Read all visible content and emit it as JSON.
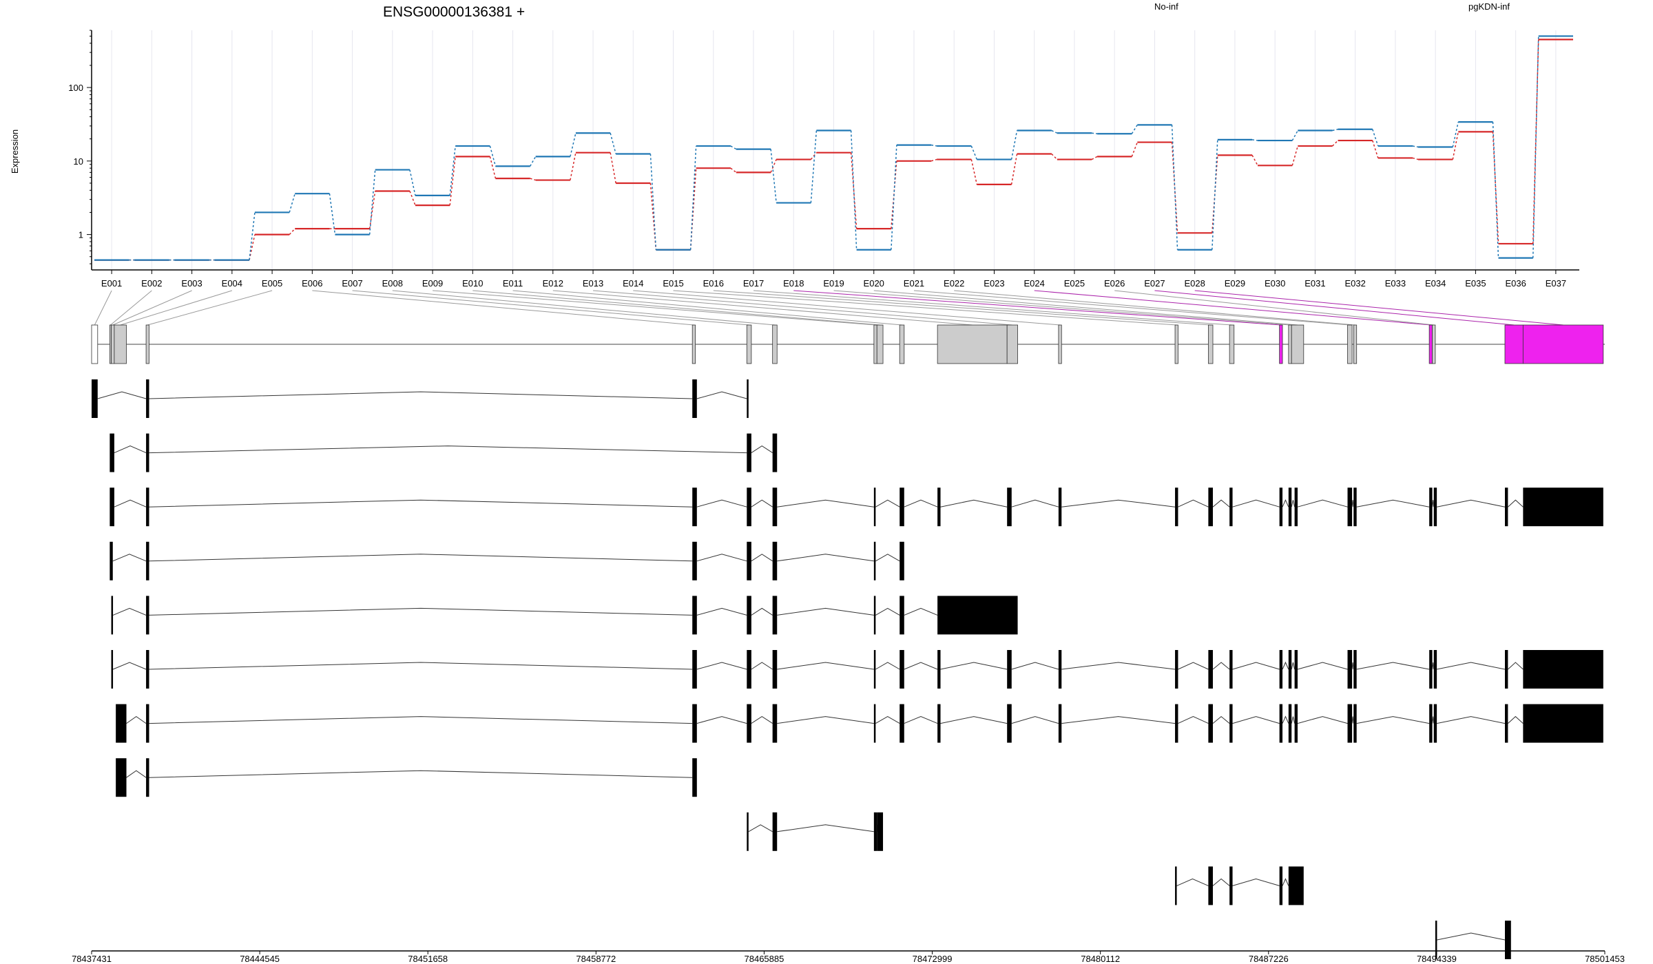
{
  "header": {
    "gene_title": "ENSG00000136381 +",
    "legend": [
      {
        "name": "No-inf",
        "color": "#d62728"
      },
      {
        "name": "pgKDN-inf",
        "color": "#1f77b4"
      }
    ]
  },
  "colors": {
    "red": "#d62728",
    "blue": "#1f77b4",
    "magenta": "#ee22ee",
    "gray_exon": "#cccccc",
    "black_exon": "#000000",
    "grid": "#e6e6ef"
  },
  "chart_data": {
    "type": "line",
    "title": "ENSG00000136381 +",
    "ylabel": "Expression",
    "yscale": "log",
    "ylim": [
      0.33,
      600
    ],
    "yticks": [
      1,
      10,
      100
    ],
    "ytick_labels": [
      "1",
      "10",
      "100"
    ],
    "grid": true,
    "categories": [
      "E001",
      "E002",
      "E003",
      "E004",
      "E005",
      "E006",
      "E007",
      "E008",
      "E009",
      "E010",
      "E011",
      "E012",
      "E013",
      "E014",
      "E015",
      "E016",
      "E017",
      "E018",
      "E019",
      "E020",
      "E021",
      "E022",
      "E023",
      "E024",
      "E025",
      "E026",
      "E027",
      "E028",
      "E029",
      "E030",
      "E031",
      "E032",
      "E033",
      "E034",
      "E035",
      "E036",
      "E037"
    ],
    "series": [
      {
        "name": "No-inf",
        "color": "#d62728",
        "values": [
          0.45,
          0.45,
          0.45,
          0.45,
          1.0,
          1.2,
          1.2,
          3.9,
          2.5,
          11.5,
          5.8,
          5.5,
          13.0,
          5.0,
          0.62,
          8.0,
          7.0,
          10.5,
          13.0,
          1.2,
          10.0,
          10.5,
          4.8,
          12.5,
          10.5,
          11.5,
          18.0,
          1.05,
          12.0,
          8.7,
          16.0,
          19.0,
          11.0,
          10.5,
          25.0,
          0.75,
          450
        ]
      },
      {
        "name": "pgKDN-inf",
        "color": "#1f77b4",
        "values": [
          0.45,
          0.45,
          0.45,
          0.45,
          2.0,
          3.6,
          1.0,
          7.6,
          3.4,
          16.0,
          8.5,
          11.5,
          24.0,
          12.5,
          0.62,
          16.0,
          14.5,
          2.7,
          26.0,
          0.62,
          16.5,
          16.0,
          10.5,
          26.0,
          24.0,
          23.5,
          31.0,
          0.62,
          19.5,
          19.0,
          26.0,
          27.0,
          16.0,
          15.5,
          34.0,
          0.48,
          500
        ]
      }
    ],
    "highlighted_bins": [
      "E018",
      "E024",
      "E027",
      "E028",
      "E036"
    ],
    "gene_model": {
      "genomic_ticks": [
        "78437431",
        "78444545",
        "78451658",
        "78458772",
        "78465885",
        "78472999",
        "78480112",
        "78487226",
        "78494339",
        "78501453"
      ]
    }
  }
}
